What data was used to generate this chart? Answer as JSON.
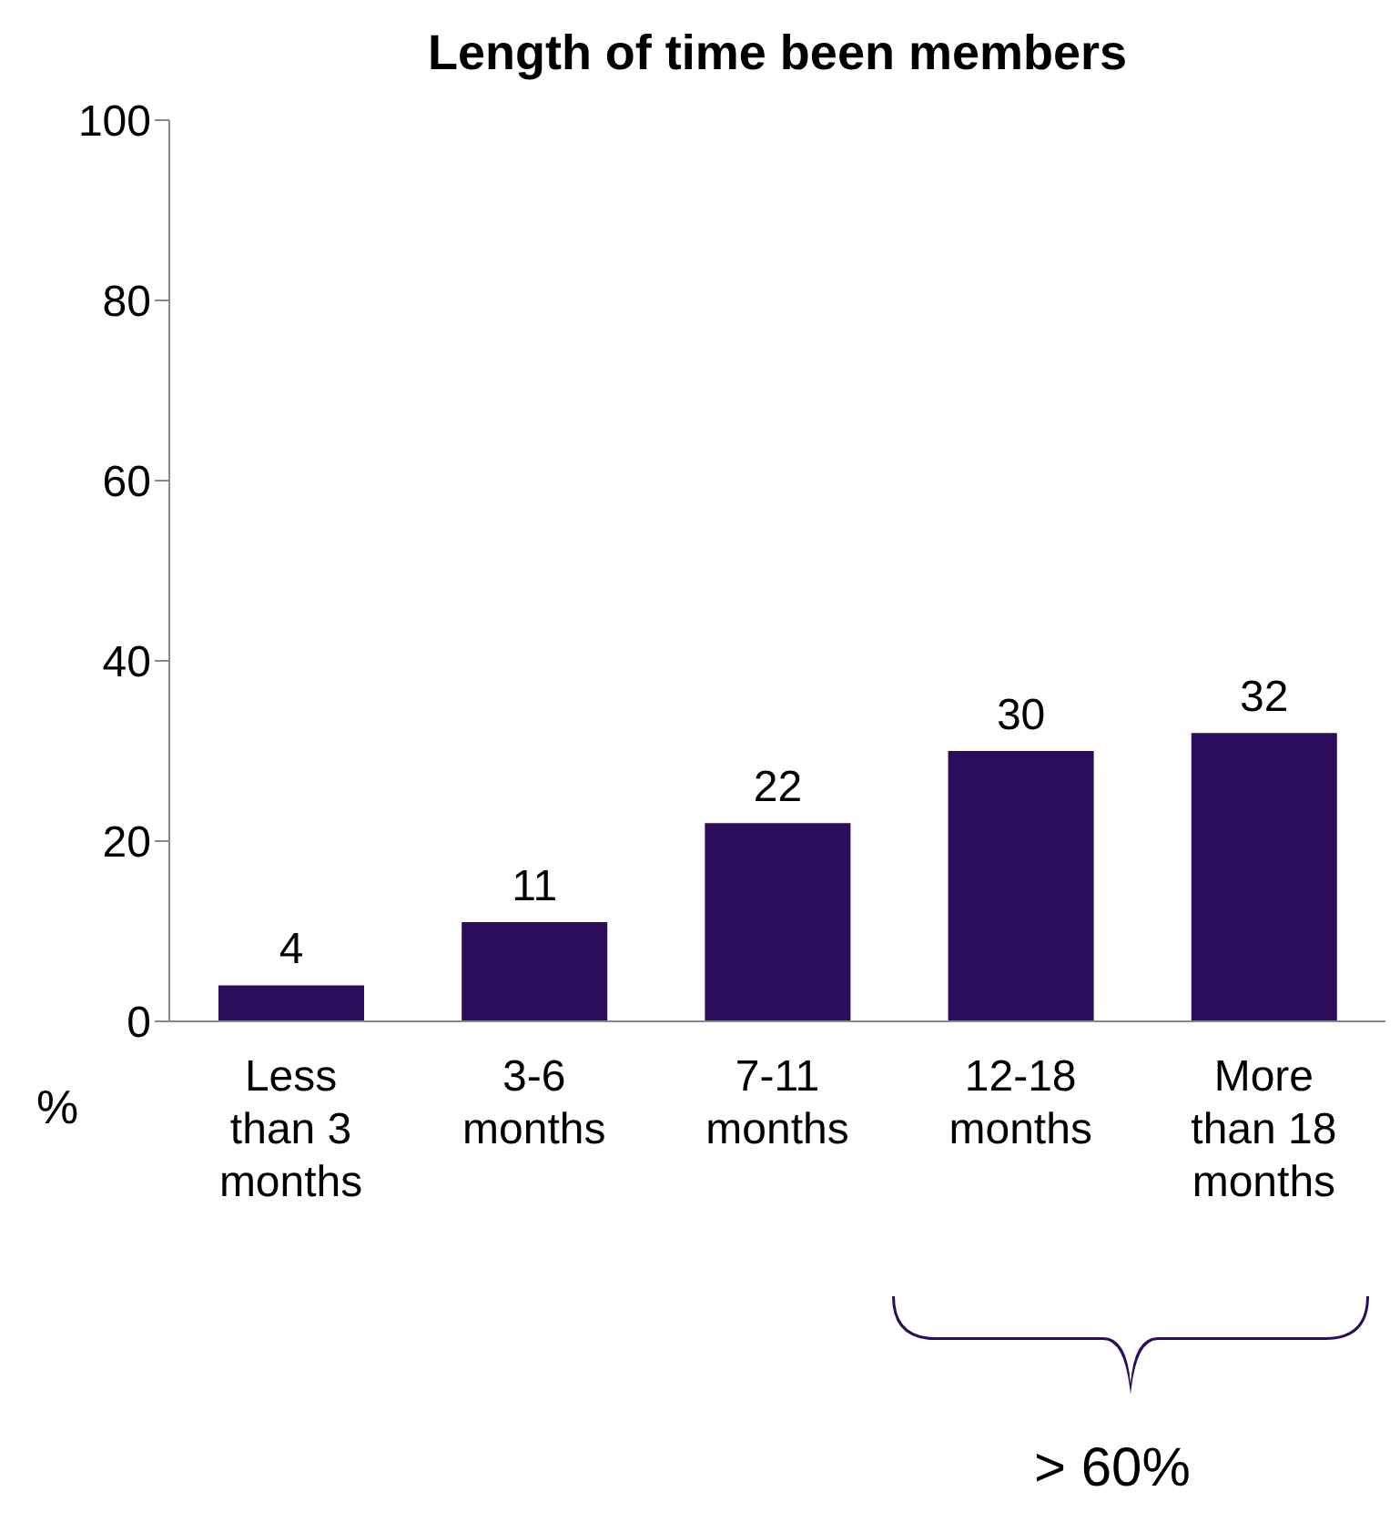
{
  "chart_data": {
    "type": "bar",
    "title": "Length of time been members",
    "ylabel": "%",
    "categories": [
      "Less than 3 months",
      "3-6 months",
      "7-11 months",
      "12-18 months",
      "More than 18 months"
    ],
    "values": [
      4,
      11,
      22,
      30,
      32
    ],
    "color": "#2b0d5c",
    "ylim": [
      0,
      100
    ],
    "yticks": [
      0,
      20,
      40,
      60,
      80,
      100
    ],
    "grid": false,
    "data_labels": true,
    "annotations": [
      "> 60%"
    ]
  }
}
